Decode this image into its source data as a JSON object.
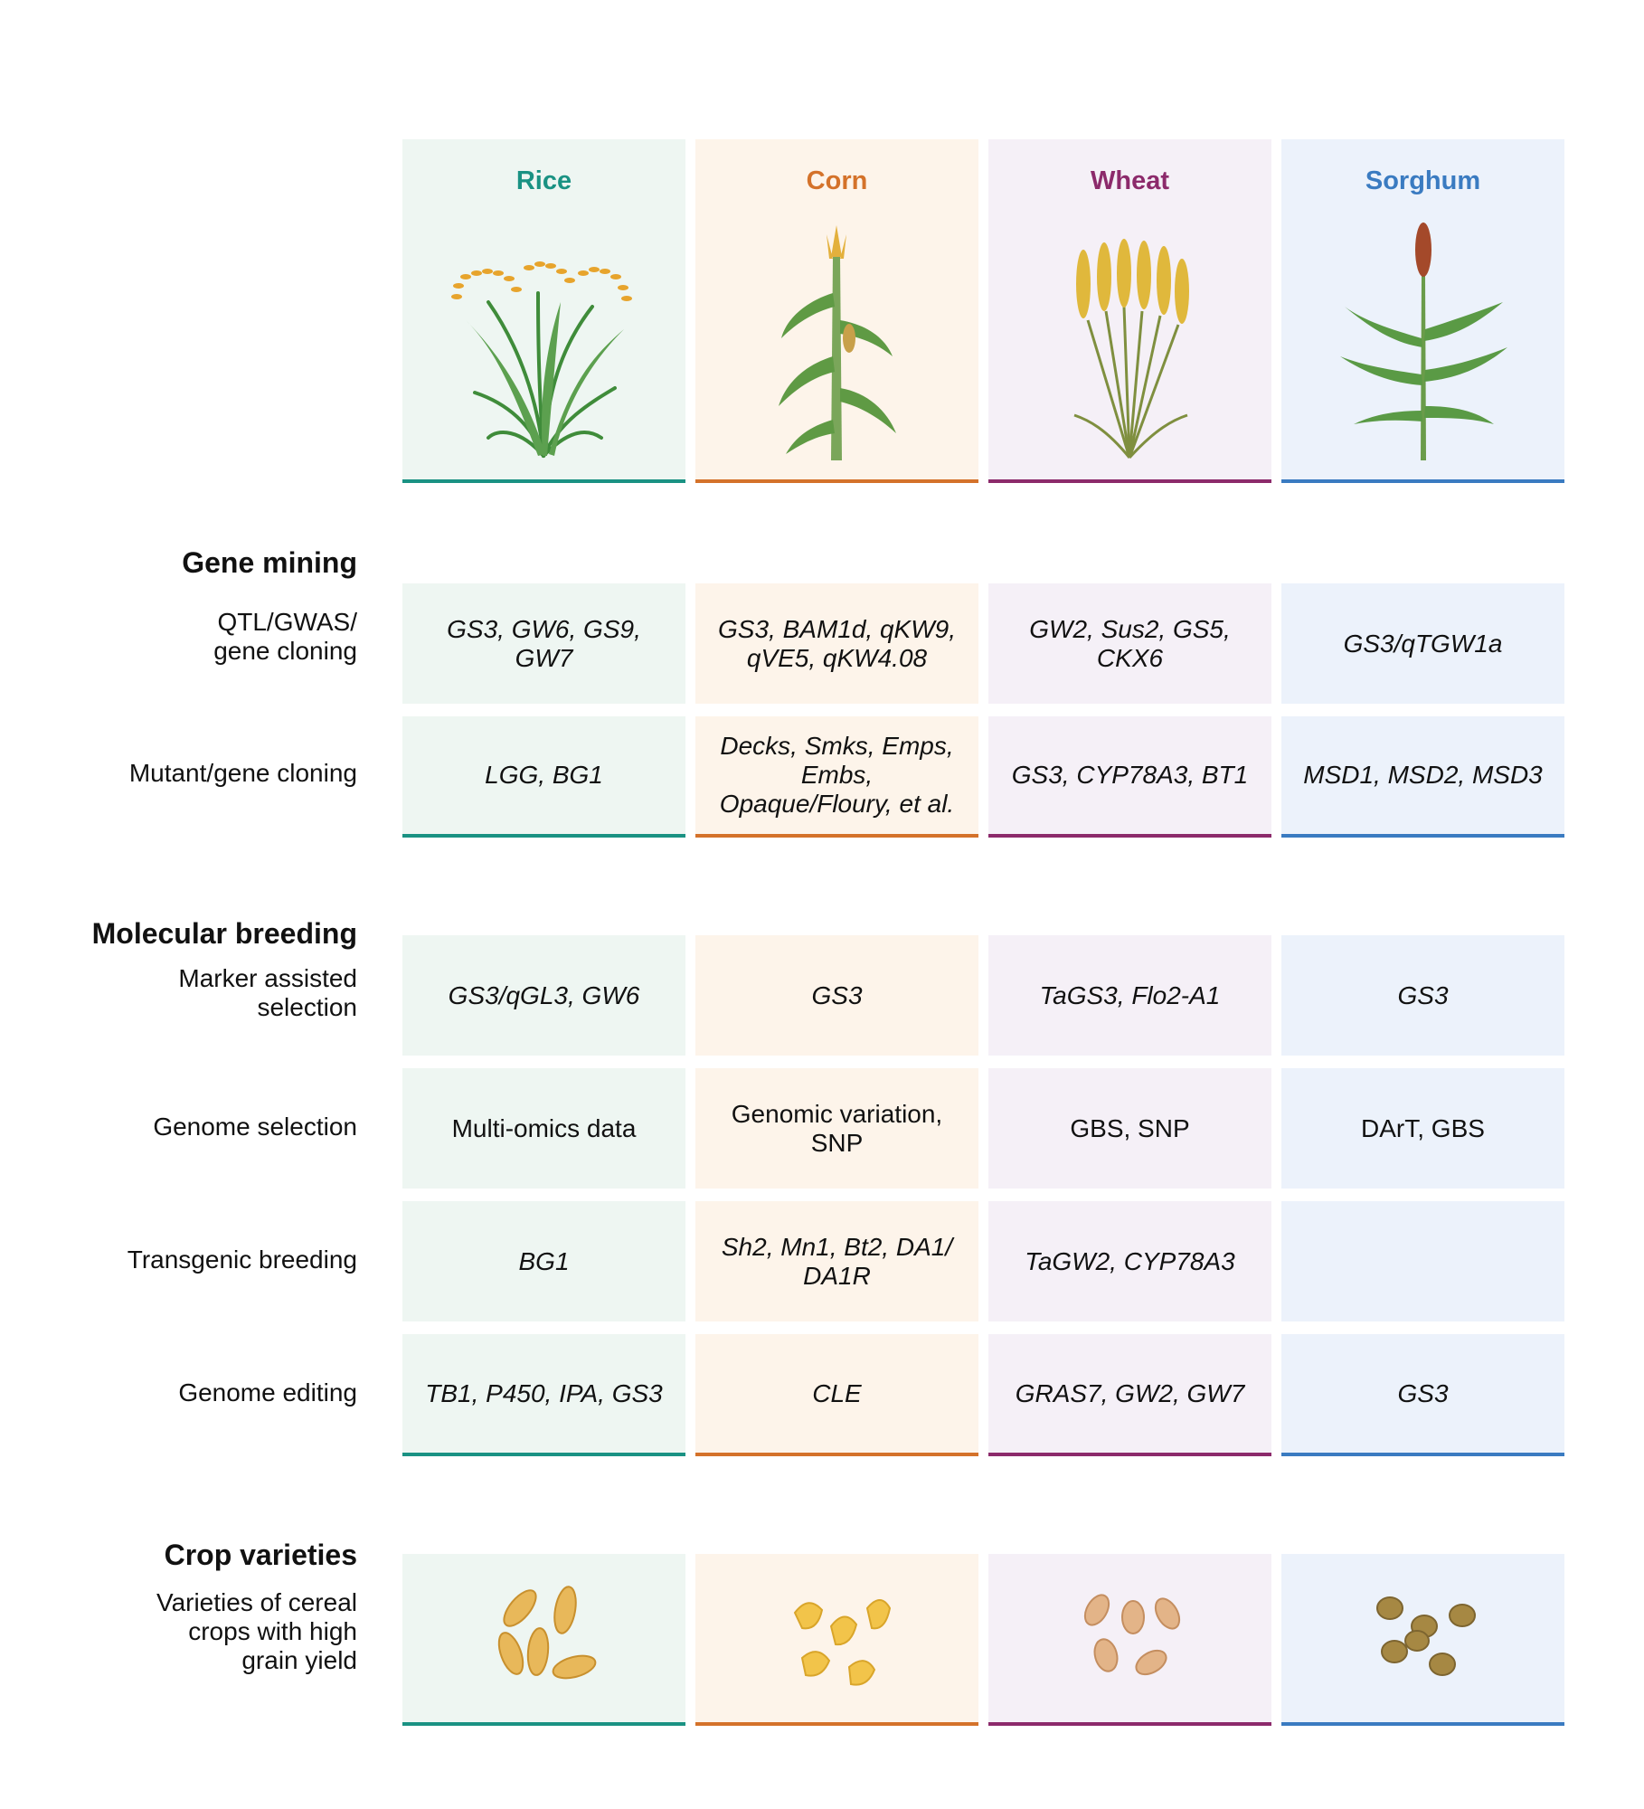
{
  "crops": [
    {
      "name": "Rice",
      "color": "#1a9283"
    },
    {
      "name": "Corn",
      "color": "#d4722a"
    },
    {
      "name": "Wheat",
      "color": "#8c2a6b"
    },
    {
      "name": "Sorghum",
      "color": "#3a7bc1"
    }
  ],
  "sections": {
    "gene_mining": "Gene mining",
    "molecular_breeding": "Molecular breeding",
    "crop_varieties": "Crop varieties"
  },
  "rows": [
    {
      "label_lines": [
        "QTL/GWAS/",
        "gene cloning"
      ],
      "cells": [
        "GS3, GW6, GS9, GW7",
        "GS3, BAM1d, qKW9, qVE5, qKW4.08",
        "GW2, Sus2, GS5, CKX6",
        "GS3/qTGW1a"
      ]
    },
    {
      "label_lines": [
        "Mutant/gene cloning"
      ],
      "cells": [
        "LGG, BG1",
        "Decks, Smks, Emps, Embs, Opaque/Floury, et al.",
        "GS3, CYP78A3, BT1",
        "MSD1, MSD2, MSD3"
      ]
    },
    {
      "label_lines": [
        "Marker assisted",
        "selection"
      ],
      "cells": [
        "GS3/qGL3, GW6",
        "GS3",
        "TaGS3, Flo2-A1",
        "GS3"
      ]
    },
    {
      "label_lines": [
        "Genome selection"
      ],
      "cells": [
        "Multi-omics data",
        "Genomic variation, SNP",
        "GBS, SNP",
        "DArT, GBS"
      ]
    },
    {
      "label_lines": [
        "Transgenic breeding"
      ],
      "cells": [
        "BG1",
        "Sh2, Mn1, Bt2, DA1/ DA1R",
        "TaGW2, CYP78A3",
        ""
      ]
    },
    {
      "label_lines": [
        "Genome editing"
      ],
      "cells": [
        "TB1, P450, IPA, GS3",
        "CLE",
        "GRAS7, GW2, GW7",
        "GS3"
      ]
    }
  ],
  "varieties_label_lines": [
    "Varieties of cereal",
    "crops with high",
    "grain yield"
  ]
}
